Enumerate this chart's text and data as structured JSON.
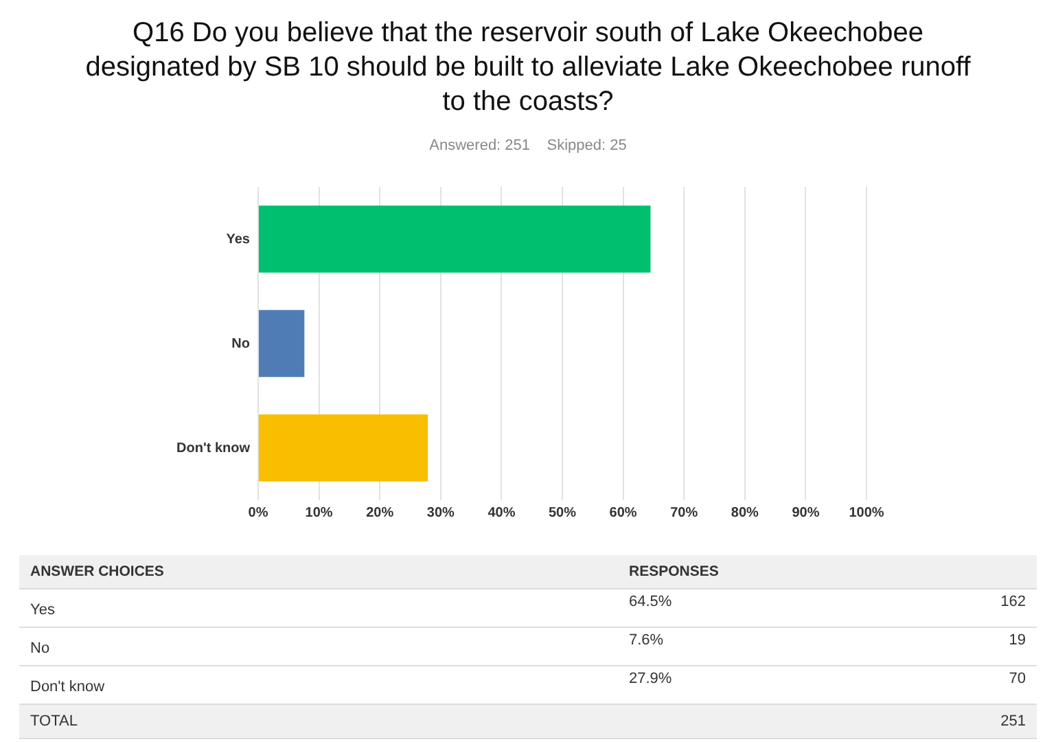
{
  "chart_data": [
    {
      "type": "bar",
      "orientation": "horizontal",
      "title": "Q16 Do you believe that the reservoir south of Lake Okeechobee designated by SB 10 should be built to alleviate Lake Okeechobee runoff to the coasts?",
      "subtitle": "Answered: 251    Skipped: 25",
      "categories": [
        "Yes",
        "No",
        "Don't know"
      ],
      "values": [
        64.5,
        7.6,
        27.9
      ],
      "value_labels": [
        "64.5%",
        "7.6%",
        "27.9%"
      ],
      "colors": [
        "#00bf6f",
        "#507cb6",
        "#f9be00"
      ],
      "xlim": [
        0,
        100
      ],
      "xticks": [
        {
          "value": 0,
          "label": "0%"
        },
        {
          "value": 10,
          "label": "10%"
        },
        {
          "value": 20,
          "label": "20%"
        },
        {
          "value": 30,
          "label": "30%"
        },
        {
          "value": 40,
          "label": "40%"
        },
        {
          "value": 50,
          "label": "50%"
        },
        {
          "value": 60,
          "label": "60%"
        },
        {
          "value": 70,
          "label": "70%"
        },
        {
          "value": 80,
          "label": "80%"
        },
        {
          "value": 90,
          "label": "90%"
        },
        {
          "value": 100,
          "label": "100%"
        }
      ],
      "grid": "x",
      "legend": false
    },
    {
      "type": "other",
      "categories": [
        "Yes",
        "No",
        "Don't know"
      ],
      "values": [
        162,
        19,
        70
      ],
      "data_labels": true,
      "annotations": [
        "ANSWER CHOICES",
        "RESPONSES",
        "TOTAL",
        "251"
      ]
    }
  ]
}
